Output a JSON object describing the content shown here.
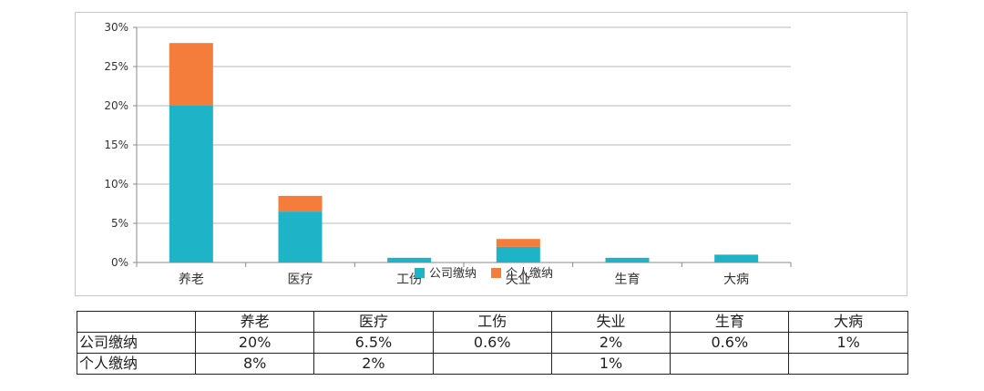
{
  "chart_data": {
    "type": "bar",
    "stacked": true,
    "categories": [
      "养老",
      "医疗",
      "工伤",
      "失业",
      "生育",
      "大病"
    ],
    "series": [
      {
        "name": "公司缴纳",
        "values": [
          20,
          6.5,
          0.6,
          2,
          0.6,
          1
        ],
        "color": "#1fb3c8"
      },
      {
        "name": "个人缴纳",
        "values": [
          8,
          2,
          0,
          1,
          0,
          0
        ],
        "color": "#f47d3b"
      }
    ],
    "ylim": [
      0,
      30
    ],
    "yticks": [
      0,
      5,
      10,
      15,
      20,
      25,
      30
    ],
    "ytick_labels": [
      "0%",
      "5%",
      "10%",
      "15%",
      "20%",
      "25%",
      "30%"
    ],
    "grid": true,
    "legend_position": "bottom-center"
  },
  "table": {
    "header": [
      "",
      "养老",
      "医疗",
      "工伤",
      "失业",
      "生育",
      "大病"
    ],
    "rows": [
      {
        "label": "公司缴纳",
        "cells": [
          "20%",
          "6.5%",
          "0.6%",
          "2%",
          "0.6%",
          "1%"
        ]
      },
      {
        "label": "个人缴纳",
        "cells": [
          "8%",
          "2%",
          "",
          "1%",
          "",
          ""
        ]
      }
    ]
  }
}
